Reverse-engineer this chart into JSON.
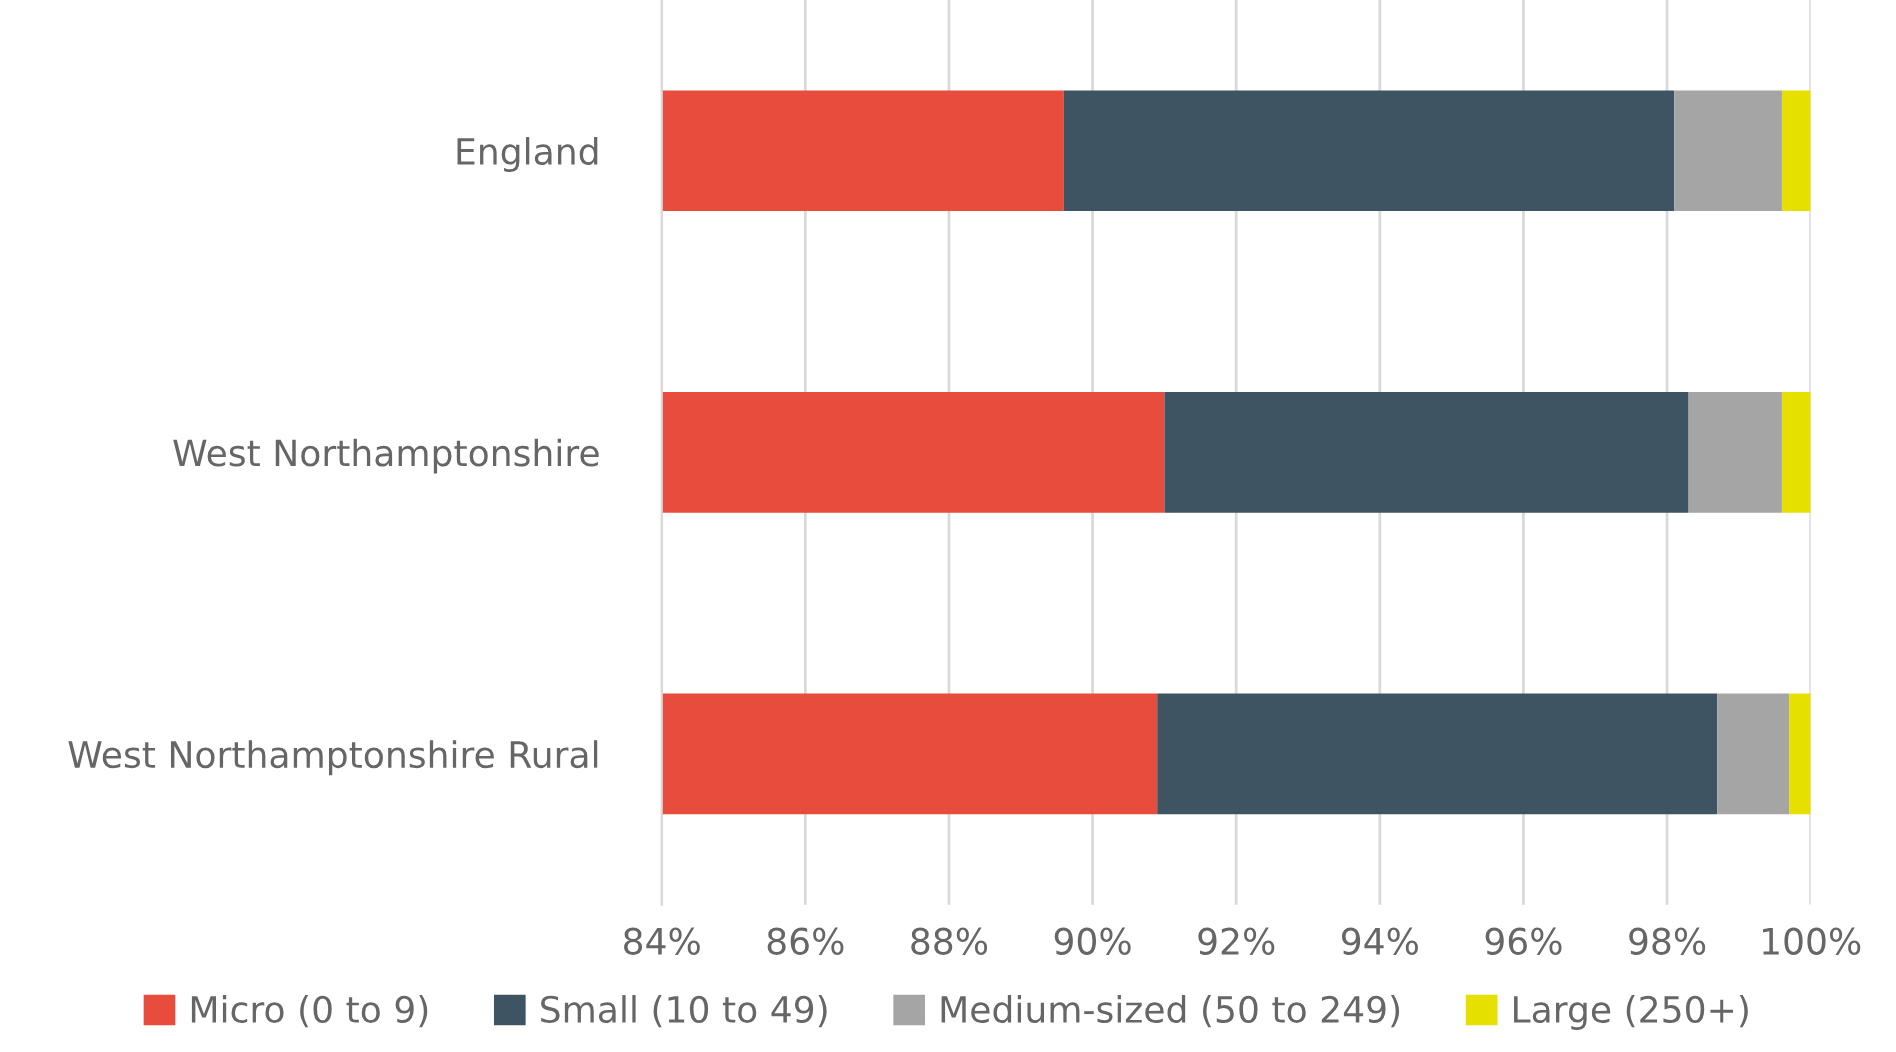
{
  "chart_data": {
    "type": "bar",
    "orientation": "horizontal",
    "categories": [
      "England",
      "West Northamptonshire",
      "West Northamptonshire Rural"
    ],
    "series": [
      {
        "name": "Micro (0 to 9)",
        "color": "#e84c3d",
        "base": [
          0,
          0,
          0
        ],
        "values": [
          89.6,
          91.0,
          90.9
        ]
      },
      {
        "name": "Small (10 to 49)",
        "color": "#3f5462",
        "base": [
          89.6,
          91.0,
          90.9
        ],
        "values": [
          8.5,
          7.3,
          7.8
        ]
      },
      {
        "name": "Medium-sized (50 to 249)",
        "color": "#a5a5a5",
        "base": [
          98.1,
          98.3,
          98.7
        ],
        "values": [
          1.5,
          1.3,
          1.0
        ]
      },
      {
        "name": "Large (250+)",
        "color": "#e5e000",
        "base": [
          99.6,
          99.6,
          99.7
        ],
        "values": [
          0.4,
          0.4,
          0.3
        ]
      }
    ],
    "xlim": [
      84,
      100
    ],
    "xticks": [
      {
        "value": 84,
        "label": "84%"
      },
      {
        "value": 86,
        "label": "86%"
      },
      {
        "value": 88,
        "label": "88%"
      },
      {
        "value": 90,
        "label": "90%"
      },
      {
        "value": 92,
        "label": "92%"
      },
      {
        "value": 94,
        "label": "94%"
      },
      {
        "value": 96,
        "label": "96%"
      },
      {
        "value": 98,
        "label": "98%"
      },
      {
        "value": 100,
        "label": "100%"
      }
    ],
    "grid": "x",
    "legend": "bottom"
  }
}
